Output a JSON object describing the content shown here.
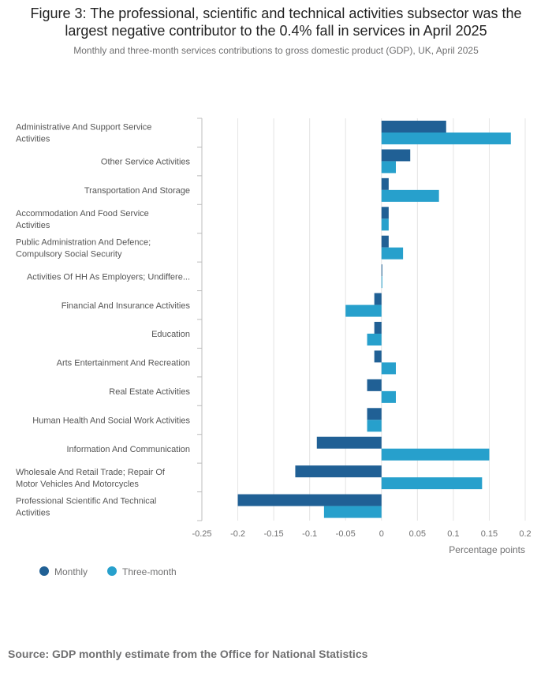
{
  "title": "Figure 3: The professional, scientific and technical activities subsector was the largest negative contributor to the 0.4% fall in services in April 2025",
  "subtitle": "Monthly and three-month services contributions to gross domestic product (GDP), UK, April 2025",
  "source": "Source: GDP monthly estimate from the Office for National Statistics",
  "colors": {
    "monthly": "#206095",
    "three_month": "#27A0CC",
    "grid": "#e4e4e4",
    "axis": "#bcbcbc",
    "text": "#707071"
  },
  "chart_data": {
    "type": "bar",
    "orientation": "horizontal",
    "categories": [
      [
        "Administrative And Support Service",
        "Activities"
      ],
      [
        "Other Service Activities"
      ],
      [
        "Transportation And Storage"
      ],
      [
        "Accommodation And Food Service",
        "Activities"
      ],
      [
        "Public Administration And Defence;",
        "Compulsory Social Security"
      ],
      [
        "Activities Of HH As Employers; Undiffere..."
      ],
      [
        "Financial And Insurance Activities"
      ],
      [
        "Education"
      ],
      [
        "Arts Entertainment And Recreation"
      ],
      [
        "Real Estate Activities"
      ],
      [
        "Human Health And Social Work Activities"
      ],
      [
        "Information And Communication"
      ],
      [
        "Wholesale And Retail Trade; Repair Of",
        "Motor Vehicles And Motorcycles"
      ],
      [
        "Professional Scientific And Technical",
        "Activities"
      ]
    ],
    "series": [
      {
        "name": "Monthly",
        "values": [
          0.09,
          0.04,
          0.01,
          0.01,
          0.01,
          0.0,
          -0.01,
          -0.01,
          -0.01,
          -0.02,
          -0.02,
          -0.09,
          -0.12,
          -0.2
        ]
      },
      {
        "name": "Three-month",
        "values": [
          0.18,
          0.02,
          0.08,
          0.01,
          0.03,
          0.0,
          -0.05,
          -0.02,
          0.02,
          0.02,
          -0.02,
          0.15,
          0.14,
          -0.08
        ]
      }
    ],
    "xlim": [
      -0.25,
      0.2
    ],
    "xticks": [
      -0.25,
      -0.2,
      -0.15,
      -0.1,
      -0.05,
      0,
      0.05,
      0.1,
      0.15,
      0.2
    ],
    "xtick_labels": [
      "-0.25",
      "-0.2",
      "-0.15",
      "-0.1",
      "-0.05",
      "0",
      "0.05",
      "0.1",
      "0.15",
      "0.2"
    ],
    "xlabel": "Percentage points",
    "ylabel": "",
    "legend": {
      "position": "bottom-left",
      "entries": [
        "Monthly",
        "Three-month"
      ]
    },
    "grid": true
  }
}
